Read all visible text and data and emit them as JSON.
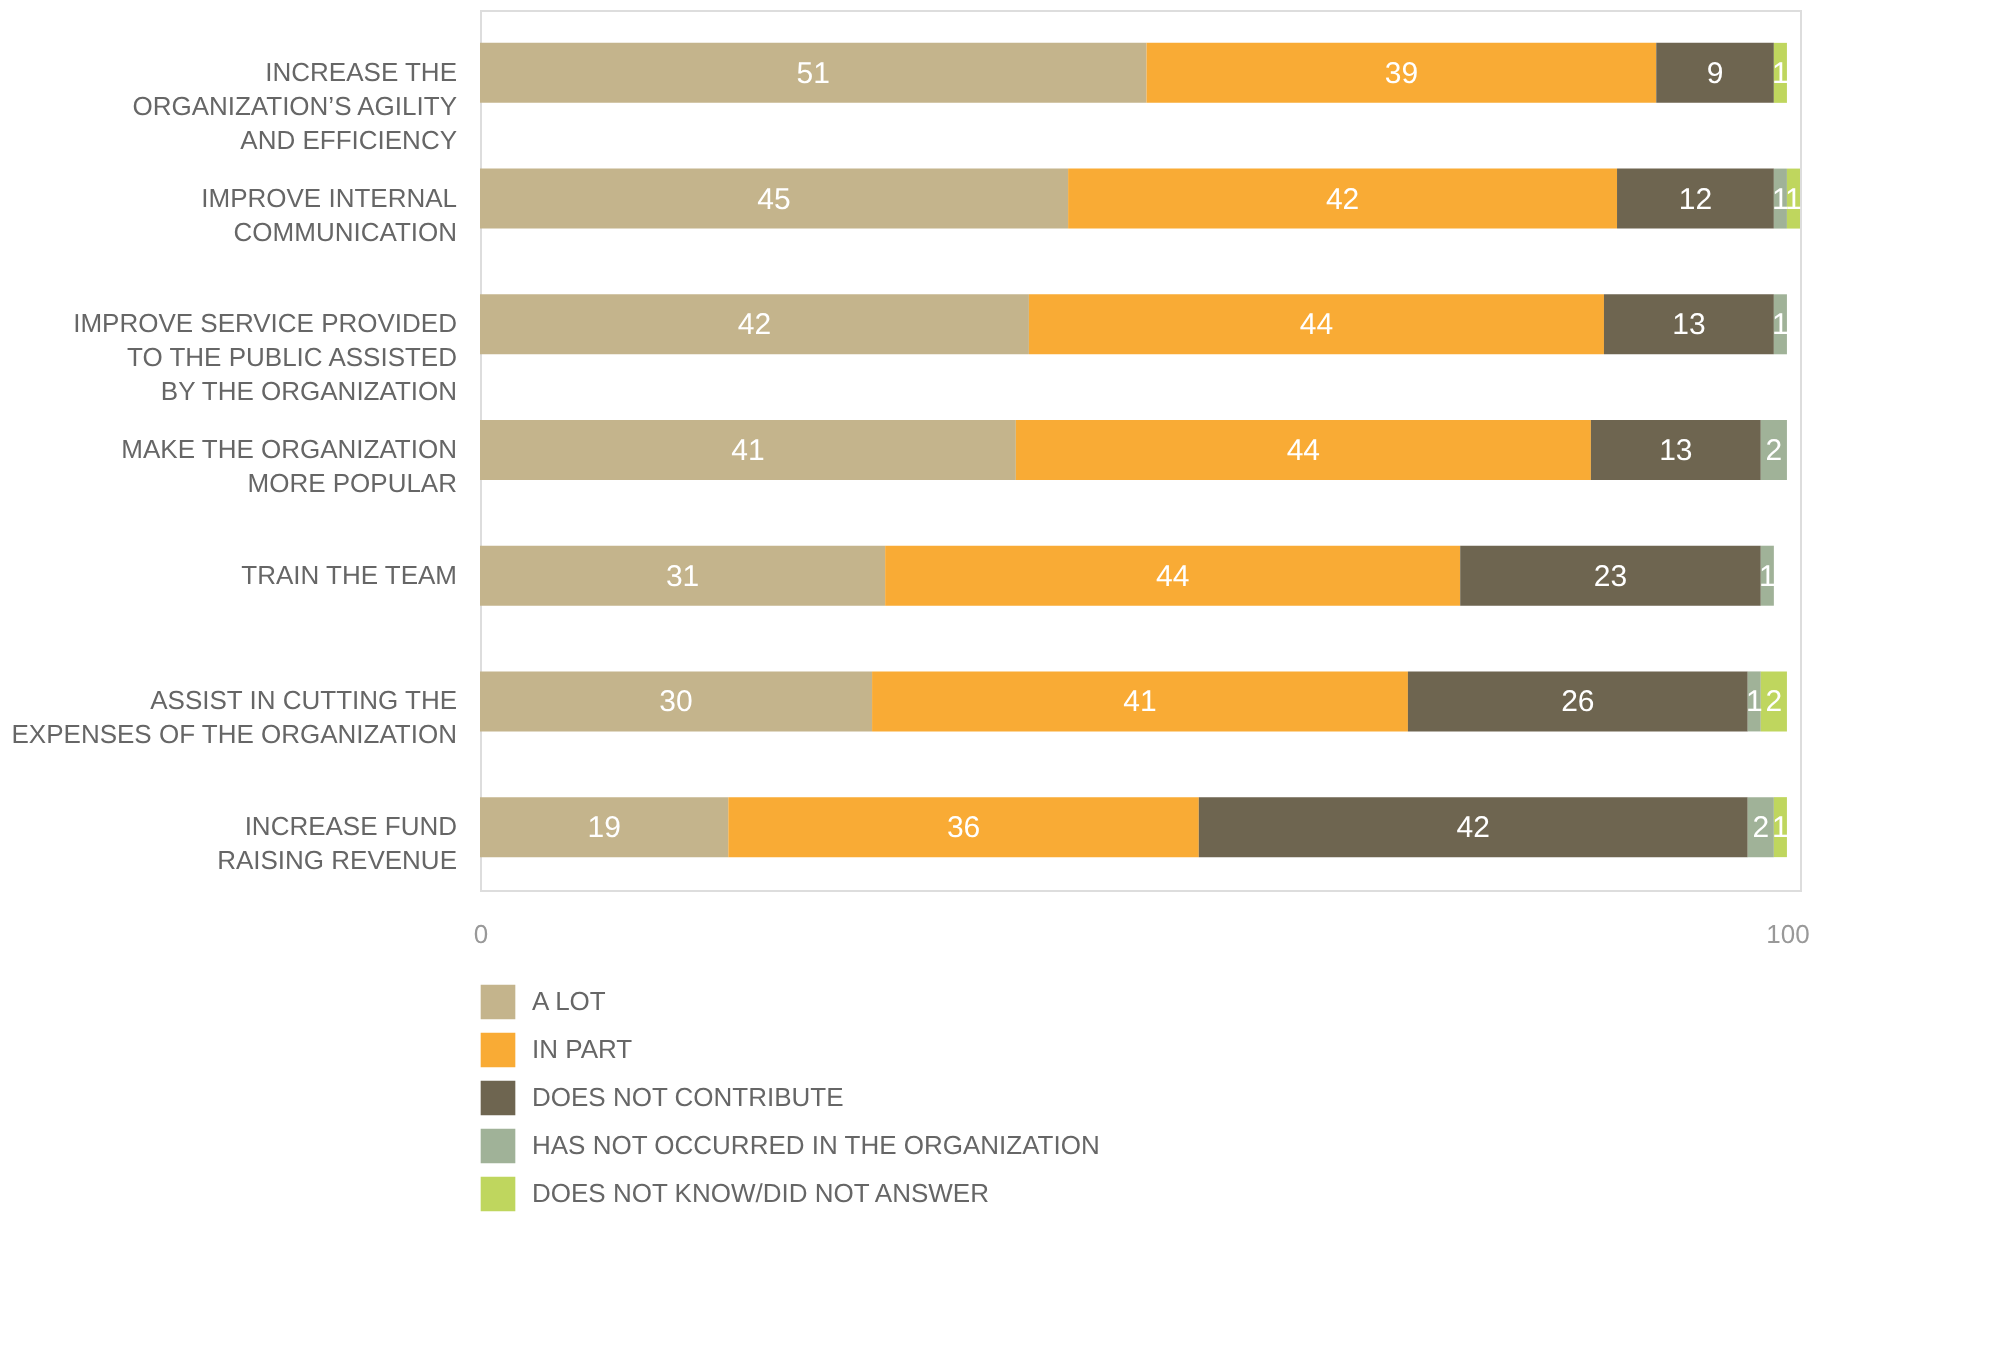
{
  "chart_data": {
    "type": "bar",
    "orientation": "horizontal",
    "stacked": true,
    "data_labels": true,
    "categories": [
      "INCREASE THE\nORGANIZATION’S AGILITY\nAND EFFICIENCY",
      "IMPROVE INTERNAL\nCOMMUNICATION",
      "IMPROVE SERVICE PROVIDED\nTO THE PUBLIC ASSISTED\nBY THE ORGANIZATION",
      "MAKE THE ORGANIZATION\nMORE POPULAR",
      "TRAIN THE TEAM",
      "ASSIST IN CUTTING THE\nEXPENSES OF THE ORGANIZATION",
      "INCREASE FUND\nRAISING REVENUE"
    ],
    "series": [
      {
        "name": "A LOT",
        "color": "#c4b48c",
        "values": [
          51,
          45,
          42,
          41,
          31,
          30,
          19
        ]
      },
      {
        "name": "IN PART",
        "color": "#f9ab35",
        "values": [
          39,
          42,
          44,
          44,
          44,
          41,
          36
        ]
      },
      {
        "name": "DOES NOT CONTRIBUTE",
        "color": "#6e6550",
        "values": [
          9,
          12,
          13,
          13,
          23,
          26,
          42
        ]
      },
      {
        "name": "HAS NOT OCCURRED IN THE ORGANIZATION",
        "color": "#a0b298",
        "values": [
          null,
          1,
          1,
          2,
          1,
          1,
          2
        ]
      },
      {
        "name": "DOES NOT KNOW/DID NOT ANSWER",
        "color": "#bfd65e",
        "values": [
          1,
          1,
          null,
          null,
          null,
          2,
          1
        ]
      }
    ],
    "xlim": [
      0,
      101
    ],
    "xticks": [
      0,
      100
    ],
    "grid": false,
    "legend": "bottom left"
  }
}
